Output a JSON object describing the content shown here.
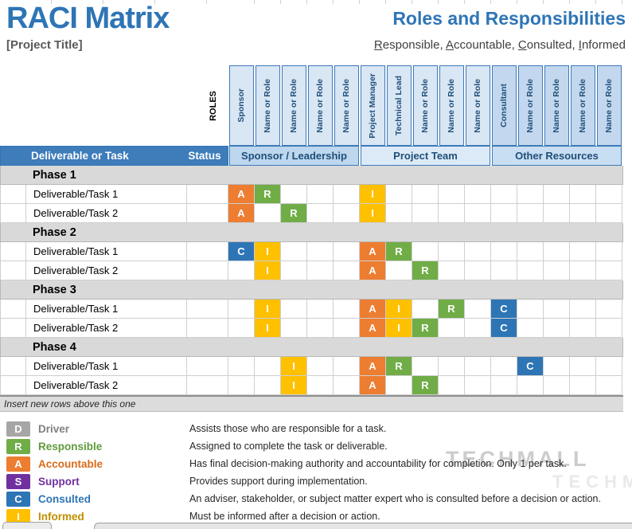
{
  "page": {
    "title": "RACI Matrix",
    "subtitle": "[Project Title]",
    "right_title": "Roles and Responsibilities",
    "raci_words": [
      "Responsible",
      "Accountable",
      "Consulted",
      "Informed"
    ],
    "watermark": "TECHMALL"
  },
  "matrix": {
    "roles_label": "ROLES",
    "task_header": "Deliverable or Task",
    "status_header": "Status",
    "groups": [
      {
        "label": "Sponsor / Leadership",
        "band_bg": "#bdd7ee",
        "col_bg": "#d9e6f4",
        "cols": [
          "Sponsor",
          "Name or Role",
          "Name or Role",
          "Name or Role",
          "Name or Role"
        ]
      },
      {
        "label": "Project Team",
        "band_bg": "#dceaf7",
        "col_bg": "#d9e6f4",
        "cols": [
          "Project Manager",
          "Technical Lead",
          "Name or Role",
          "Name or Role",
          "Name or Role"
        ]
      },
      {
        "label": "Other Resources",
        "band_bg": "#c8def2",
        "col_bg": "#c3d8ee",
        "cols": [
          "Consultant",
          "Name or Role",
          "Name or Role",
          "Name or Role",
          "Name or Role"
        ]
      }
    ],
    "code_colors": {
      "A": "#ed7d31",
      "R": "#70ad47",
      "C": "#2e75b6",
      "I": "#ffc000",
      "D": "#a6a6a6",
      "S": "#7030a0"
    },
    "phases": [
      {
        "name": "Phase 1",
        "tasks": [
          {
            "name": "Deliverable/Task 1",
            "marks": [
              {
                "col": 0,
                "code": "A"
              },
              {
                "col": 1,
                "code": "R"
              },
              {
                "col": 5,
                "code": "I"
              }
            ]
          },
          {
            "name": "Deliverable/Task 2",
            "marks": [
              {
                "col": 0,
                "code": "A"
              },
              {
                "col": 2,
                "code": "R"
              },
              {
                "col": 5,
                "code": "I"
              }
            ]
          }
        ]
      },
      {
        "name": "Phase 2",
        "tasks": [
          {
            "name": "Deliverable/Task 1",
            "marks": [
              {
                "col": 0,
                "code": "C"
              },
              {
                "col": 1,
                "code": "I"
              },
              {
                "col": 5,
                "code": "A"
              },
              {
                "col": 6,
                "code": "R"
              }
            ]
          },
          {
            "name": "Deliverable/Task 2",
            "marks": [
              {
                "col": 1,
                "code": "I"
              },
              {
                "col": 5,
                "code": "A"
              },
              {
                "col": 7,
                "code": "R"
              }
            ]
          }
        ]
      },
      {
        "name": "Phase 3",
        "tasks": [
          {
            "name": "Deliverable/Task 1",
            "marks": [
              {
                "col": 1,
                "code": "I"
              },
              {
                "col": 5,
                "code": "A"
              },
              {
                "col": 6,
                "code": "I"
              },
              {
                "col": 8,
                "code": "R"
              },
              {
                "col": 10,
                "code": "C"
              }
            ]
          },
          {
            "name": "Deliverable/Task 2",
            "marks": [
              {
                "col": 1,
                "code": "I"
              },
              {
                "col": 5,
                "code": "A"
              },
              {
                "col": 6,
                "code": "I"
              },
              {
                "col": 7,
                "code": "R"
              },
              {
                "col": 10,
                "code": "C"
              }
            ]
          }
        ]
      },
      {
        "name": "Phase 4",
        "tasks": [
          {
            "name": "Deliverable/Task 1",
            "marks": [
              {
                "col": 2,
                "code": "I"
              },
              {
                "col": 5,
                "code": "A"
              },
              {
                "col": 6,
                "code": "R"
              },
              {
                "col": 11,
                "code": "C"
              }
            ]
          },
          {
            "name": "Deliverable/Task 2",
            "marks": [
              {
                "col": 2,
                "code": "I"
              },
              {
                "col": 5,
                "code": "A"
              },
              {
                "col": 7,
                "code": "R"
              }
            ]
          }
        ]
      }
    ],
    "footer_note": "Insert new rows above this one"
  },
  "legend": {
    "items": [
      {
        "letter": "D",
        "label": "Driver",
        "color": "#a6a6a6",
        "label_color": "#7f7f7f",
        "desc": "Assists those who are responsible for a task."
      },
      {
        "letter": "R",
        "label": "Responsible",
        "color": "#70ad47",
        "label_color": "#619b3d",
        "desc": "Assigned to complete the task or deliverable."
      },
      {
        "letter": "A",
        "label": "Accountable",
        "color": "#ed7d31",
        "label_color": "#d96b1a",
        "desc": "Has final decision-making authority and accountability for completion. Only 1 per task."
      },
      {
        "letter": "S",
        "label": "Support",
        "color": "#7030a0",
        "label_color": "#7030a0",
        "desc": "Provides support during implementation."
      },
      {
        "letter": "C",
        "label": "Consulted",
        "color": "#2e75b6",
        "label_color": "#2e75b6",
        "desc": "An adviser, stakeholder, or subject matter expert who is consulted before a decision or action."
      },
      {
        "letter": "I",
        "label": "Informed",
        "color": "#ffc000",
        "label_color": "#bf8f00",
        "desc": "Must be informed after a decision or action."
      }
    ]
  }
}
